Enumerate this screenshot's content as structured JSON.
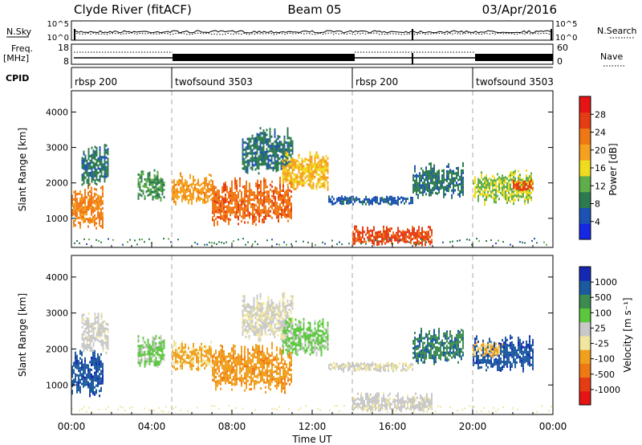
{
  "header": {
    "station": "Clyde River (fitACF)",
    "beam": "Beam 05",
    "date": "03/Apr/2016"
  },
  "top_panels": {
    "nsky_label": "N.Sky",
    "nsky_ticks": [
      "10^5",
      "10^0"
    ],
    "nsearch_label": "N.Search",
    "nsearch_ticks": [
      "10^5",
      "10^0"
    ],
    "freq_label_line1": "Freq.",
    "freq_label_line2": "[MHz]",
    "freq_ticks": [
      "18",
      "8"
    ],
    "nave_label": "Nave",
    "nave_ticks": [
      "60",
      "0"
    ],
    "cpid_label": "CPID",
    "cpid_segments": [
      {
        "label": "rbsp 200",
        "start_h": 0,
        "end_h": 5
      },
      {
        "label": "twofsound 3503",
        "start_h": 5,
        "end_h": 14
      },
      {
        "label": "rbsp 200",
        "start_h": 14,
        "end_h": 20
      },
      {
        "label": "twofsound 3503",
        "start_h": 20,
        "end_h": 24
      }
    ]
  },
  "chart_data": [
    {
      "type": "heatmap",
      "name": "power",
      "ylabel": "Slant Range [km]",
      "x_range_h": [
        0,
        24
      ],
      "ylim": [
        180,
        4600
      ],
      "yticks": [
        "1000",
        "2000",
        "3000",
        "4000"
      ],
      "colorbar": {
        "label": "Power [dB]",
        "range": [
          0,
          32
        ],
        "ticks": [
          "4",
          "8",
          "12",
          "16",
          "20",
          "24",
          "28"
        ],
        "colors": [
          "#1428e6",
          "#1c52b4",
          "#2c7a50",
          "#5fae4a",
          "#f0dc1e",
          "#f5a01e",
          "#f07814",
          "#e63c14",
          "#e61414"
        ]
      },
      "echo_regions": [
        {
          "t0": 0.0,
          "t1": 1.6,
          "r0": 700,
          "r1": 2000,
          "value": 22
        },
        {
          "t0": 0.5,
          "t1": 1.8,
          "r0": 1900,
          "r1": 3100,
          "value": 8
        },
        {
          "t0": 3.3,
          "t1": 4.6,
          "r0": 1500,
          "r1": 2400,
          "value": 10
        },
        {
          "t0": 5.0,
          "t1": 7.0,
          "r0": 1400,
          "r1": 2300,
          "value": 20
        },
        {
          "t0": 7.0,
          "t1": 11.0,
          "r0": 800,
          "r1": 2200,
          "value": 24
        },
        {
          "t0": 8.5,
          "t1": 11.0,
          "r0": 2200,
          "r1": 3600,
          "value": 8
        },
        {
          "t0": 10.5,
          "t1": 12.8,
          "r0": 1800,
          "r1": 2900,
          "value": 18
        },
        {
          "t0": 12.8,
          "t1": 17.0,
          "r0": 1400,
          "r1": 1650,
          "value": 6
        },
        {
          "t0": 14.0,
          "t1": 18.0,
          "r0": 250,
          "r1": 800,
          "value": 26
        },
        {
          "t0": 17.0,
          "t1": 19.5,
          "r0": 1600,
          "r1": 2600,
          "value": 8
        },
        {
          "t0": 20.0,
          "t1": 23.0,
          "r0": 1400,
          "r1": 2400,
          "value": 14
        },
        {
          "t0": 22.0,
          "t1": 23.0,
          "r0": 1800,
          "r1": 2100,
          "value": 26
        }
      ]
    },
    {
      "type": "heatmap",
      "name": "velocity",
      "ylabel": "Slant Range [km]",
      "xlabel": "Time UT",
      "x_range_h": [
        0,
        24
      ],
      "xticks": [
        "00:00",
        "04:00",
        "08:00",
        "12:00",
        "16:00",
        "20:00",
        "00:00"
      ],
      "ylim": [
        180,
        4600
      ],
      "yticks": [
        "1000",
        "2000",
        "3000",
        "4000"
      ],
      "colorbar": {
        "label": "Velocity [m s⁻¹]",
        "range": [
          -1250,
          1250
        ],
        "ticks": [
          "1000",
          "500",
          "100",
          "25",
          "-25",
          "-100",
          "-500",
          "-1000"
        ],
        "colors": [
          "#e61414",
          "#e63c14",
          "#f07814",
          "#f0a01e",
          "#f0e6a0",
          "#c8c8c8",
          "#5ac83c",
          "#3c8c50",
          "#1c5aa0",
          "#1428b4"
        ]
      },
      "echo_regions": [
        {
          "t0": 0.0,
          "t1": 1.6,
          "r0": 700,
          "r1": 2000,
          "value": 900
        },
        {
          "t0": 0.5,
          "t1": 1.8,
          "r0": 1900,
          "r1": 3100,
          "value": 100
        },
        {
          "t0": 3.3,
          "t1": 4.6,
          "r0": 1500,
          "r1": 2400,
          "value": 300
        },
        {
          "t0": 5.0,
          "t1": 7.0,
          "r0": 1400,
          "r1": 2300,
          "value": -300
        },
        {
          "t0": 7.0,
          "t1": 11.0,
          "r0": 800,
          "r1": 2200,
          "value": -400
        },
        {
          "t0": 8.5,
          "t1": 11.0,
          "r0": 2200,
          "r1": 3600,
          "value": 30
        },
        {
          "t0": 10.5,
          "t1": 12.8,
          "r0": 1800,
          "r1": 2900,
          "value": 300
        },
        {
          "t0": 12.8,
          "t1": 17.0,
          "r0": 1400,
          "r1": 1650,
          "value": 40
        },
        {
          "t0": 14.0,
          "t1": 18.0,
          "r0": 250,
          "r1": 800,
          "value": 100
        },
        {
          "t0": 17.0,
          "t1": 19.5,
          "r0": 1600,
          "r1": 2600,
          "value": 700
        },
        {
          "t0": 20.0,
          "t1": 23.0,
          "r0": 1400,
          "r1": 2400,
          "value": 900
        },
        {
          "t0": 20.0,
          "t1": 21.5,
          "r0": 1800,
          "r1": 2200,
          "value": -300
        }
      ]
    }
  ]
}
